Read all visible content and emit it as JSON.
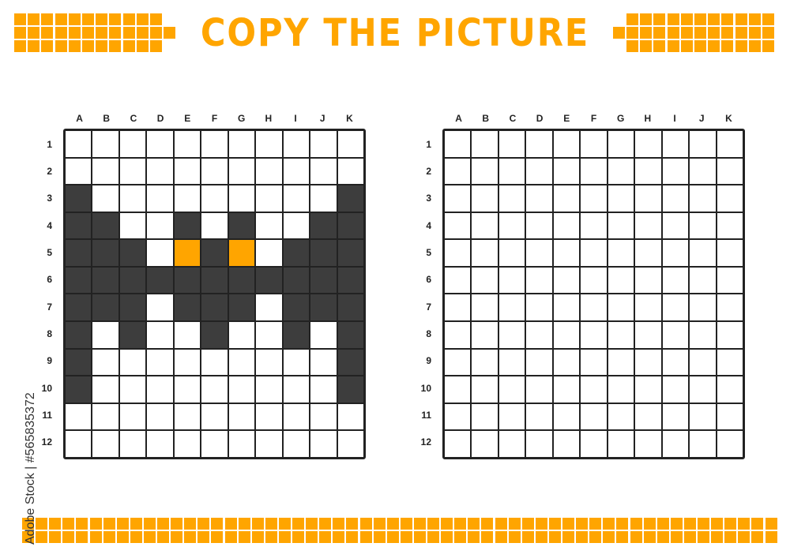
{
  "title": "COPY THE PICTURE",
  "watermark": "Adobe Stock | #565835372",
  "colors": {
    "accent": "#FFA500",
    "dark": "#3d3d3d",
    "line": "#222222"
  },
  "columns": [
    "A",
    "B",
    "C",
    "D",
    "E",
    "F",
    "G",
    "H",
    "I",
    "J",
    "K"
  ],
  "rows": [
    "1",
    "2",
    "3",
    "4",
    "5",
    "6",
    "7",
    "8",
    "9",
    "10",
    "11",
    "12"
  ],
  "cell_legend": {
    "0": "white",
    "1": "dark",
    "2": "orange"
  },
  "source_grid": [
    "00000000000",
    "00000000000",
    "10000000001",
    "11001010011",
    "11102120111",
    "11111111111",
    "11101110111",
    "10100100101",
    "10000000001",
    "10000000001",
    "00000000000",
    "00000000000"
  ],
  "target_grid": "empty"
}
